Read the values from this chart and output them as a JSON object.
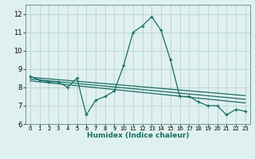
{
  "xlabel": "Humidex (Indice chaleur)",
  "bg_color": "#dff0f0",
  "grid_color": "#c0d4d4",
  "line_color": "#1a6e64",
  "xlim": [
    -0.5,
    23.5
  ],
  "ylim": [
    6.0,
    12.5
  ],
  "yticks": [
    6,
    7,
    8,
    9,
    10,
    11,
    12
  ],
  "xtick_labels": [
    "0",
    "1",
    "2",
    "3",
    "4",
    "5",
    "6",
    "7",
    "8",
    "9",
    "10",
    "11",
    "12",
    "13",
    "14",
    "15",
    "16",
    "17",
    "18",
    "19",
    "20",
    "21",
    "22",
    "23"
  ],
  "series1_x": [
    0,
    1,
    2,
    3,
    4,
    5,
    6,
    7,
    8,
    9,
    10,
    11,
    12,
    13,
    14,
    15,
    16,
    17,
    18,
    19,
    20,
    21,
    22,
    23
  ],
  "series1_y": [
    8.6,
    8.4,
    8.3,
    8.3,
    8.0,
    8.5,
    6.5,
    7.3,
    7.5,
    7.8,
    9.2,
    11.0,
    11.35,
    11.85,
    11.1,
    9.5,
    7.5,
    7.5,
    7.2,
    7.0,
    7.0,
    6.5,
    6.8,
    6.7
  ],
  "series2_x": [
    0,
    23
  ],
  "series2_y": [
    8.55,
    7.55
  ],
  "series3_x": [
    0,
    23
  ],
  "series3_y": [
    8.45,
    7.35
  ],
  "series4_x": [
    0,
    23
  ],
  "series4_y": [
    8.35,
    7.15
  ]
}
